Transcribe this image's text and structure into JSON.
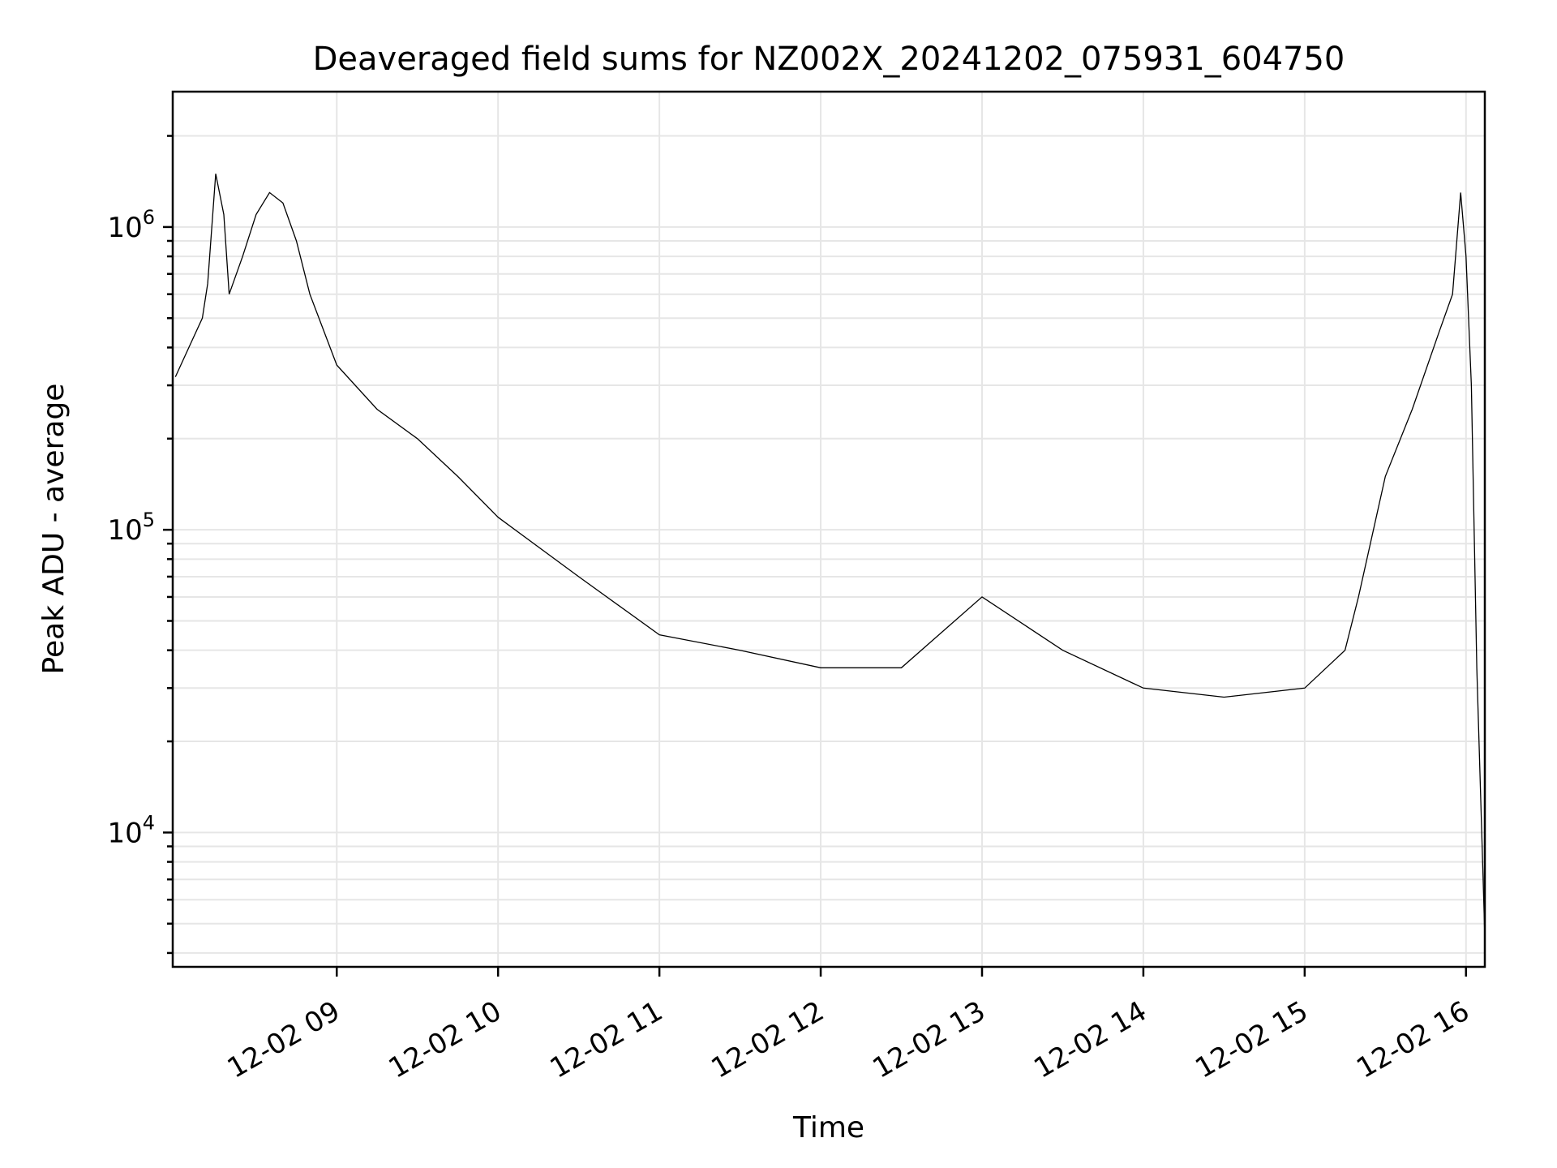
{
  "chart_data": {
    "type": "line",
    "title": "Deaveraged field sums for NZ002X_20241202_075931_604750",
    "xlabel": "Time",
    "ylabel": "Peak ADU - average",
    "yscale": "log",
    "grid": true,
    "xlim": [
      "2024-12-02 07:59",
      "2024-12-02 16:07"
    ],
    "ylim": [
      3600,
      2800000
    ],
    "x_ticks": [
      "12-02 09",
      "12-02 10",
      "12-02 11",
      "12-02 12",
      "12-02 13",
      "12-02 14",
      "12-02 15",
      "12-02 16"
    ],
    "y_ticks": [
      {
        "value": 10000,
        "base": "10",
        "exp": "4"
      },
      {
        "value": 100000,
        "base": "10",
        "exp": "5"
      },
      {
        "value": 1000000,
        "base": "10",
        "exp": "6"
      }
    ],
    "series": [
      {
        "color": "#000000",
        "x": [
          "2024-12-02 08:00",
          "2024-12-02 08:05",
          "2024-12-02 08:10",
          "2024-12-02 08:12",
          "2024-12-02 08:15",
          "2024-12-02 08:18",
          "2024-12-02 08:20",
          "2024-12-02 08:25",
          "2024-12-02 08:30",
          "2024-12-02 08:35",
          "2024-12-02 08:40",
          "2024-12-02 08:45",
          "2024-12-02 08:50",
          "2024-12-02 09:00",
          "2024-12-02 09:15",
          "2024-12-02 09:30",
          "2024-12-02 09:45",
          "2024-12-02 10:00",
          "2024-12-02 10:30",
          "2024-12-02 11:00",
          "2024-12-02 11:30",
          "2024-12-02 12:00",
          "2024-12-02 12:30",
          "2024-12-02 13:00",
          "2024-12-02 13:30",
          "2024-12-02 14:00",
          "2024-12-02 14:30",
          "2024-12-02 15:00",
          "2024-12-02 15:15",
          "2024-12-02 15:20",
          "2024-12-02 15:30",
          "2024-12-02 15:40",
          "2024-12-02 15:50",
          "2024-12-02 15:55",
          "2024-12-02 15:58",
          "2024-12-02 16:00",
          "2024-12-02 16:02",
          "2024-12-02 16:04",
          "2024-12-02 16:06",
          "2024-12-02 16:07"
        ],
        "y": [
          320000,
          400000,
          500000,
          650000,
          1500000,
          1100000,
          600000,
          800000,
          1100000,
          1300000,
          1200000,
          900000,
          600000,
          350000,
          250000,
          200000,
          150000,
          110000,
          70000,
          45000,
          40000,
          35000,
          35000,
          60000,
          40000,
          30000,
          28000,
          30000,
          40000,
          60000,
          150000,
          250000,
          450000,
          600000,
          1300000,
          800000,
          300000,
          35000,
          9000,
          4500
        ]
      }
    ]
  }
}
